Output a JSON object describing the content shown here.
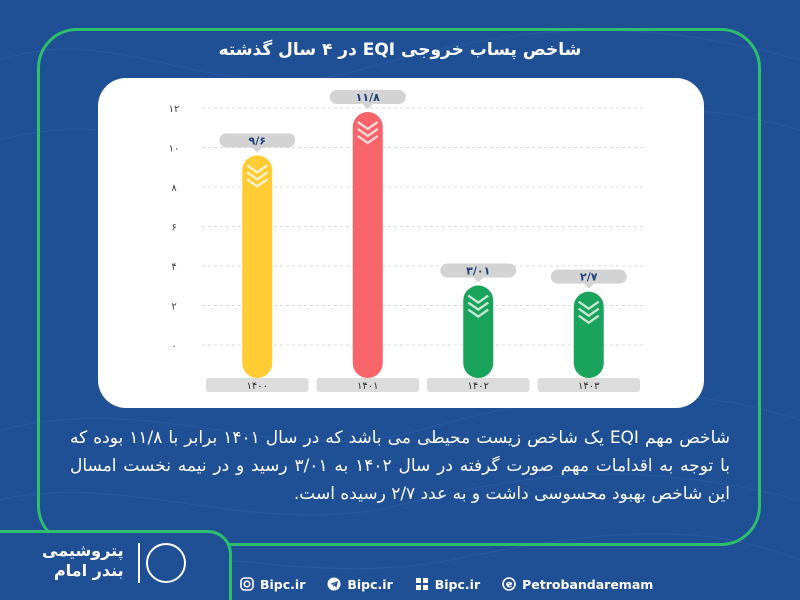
{
  "title": "شاخص پساب خروجی EQI در ۴ سال گذشته",
  "description": "شاخص مهم EQI یک شاخص زیست محیطی می باشد که در سال ۱۴۰۱ برابر با ۱۱/۸ بوده که با توجه به اقدامات مهم صورت گرفته در سال ۱۴۰۲ به ۳/۰۱ رسید و در نیمه نخست امسال این شاخص بهبود محسوسی داشت و به عدد ۲/۷ رسیده است.",
  "logo": {
    "text_line1": "پتروشیمی",
    "text_line2": "بندر امام"
  },
  "footer": [
    {
      "icon": "instagram-icon",
      "label": "Bipc.ir"
    },
    {
      "icon": "telegram-icon",
      "label": "Bipc.ir"
    },
    {
      "icon": "website-icon",
      "label": "Bipc.ir"
    },
    {
      "icon": "eitaa-icon",
      "label": "Petrobandaremam"
    }
  ],
  "colors": {
    "background": "#1f4f95",
    "frame": "#2dbf6e",
    "bar_yellow": "#ffcc33",
    "bar_red": "#f7656a",
    "bar_green": "#1aa35a"
  },
  "chart_data": {
    "type": "bar",
    "categories": [
      "۱۴۰۰",
      "۱۴۰۱",
      "۱۴۰۲",
      "۱۴۰۳"
    ],
    "values": [
      9.6,
      11.8,
      3.01,
      2.7
    ],
    "value_labels": [
      "۹/۶",
      "۱۱/۸",
      "۳/۰۱",
      "۲/۷"
    ],
    "bar_colors": [
      "#ffcc33",
      "#f7656a",
      "#1aa35a",
      "#1aa35a"
    ],
    "yticks": [
      0,
      2,
      4,
      6,
      8,
      10,
      12
    ],
    "ytick_labels": [
      "۰",
      "۲",
      "۴",
      "۶",
      "۸",
      "۱۰",
      "۱۲"
    ],
    "ylim": [
      0,
      12
    ],
    "grid": true,
    "legend": "none"
  }
}
